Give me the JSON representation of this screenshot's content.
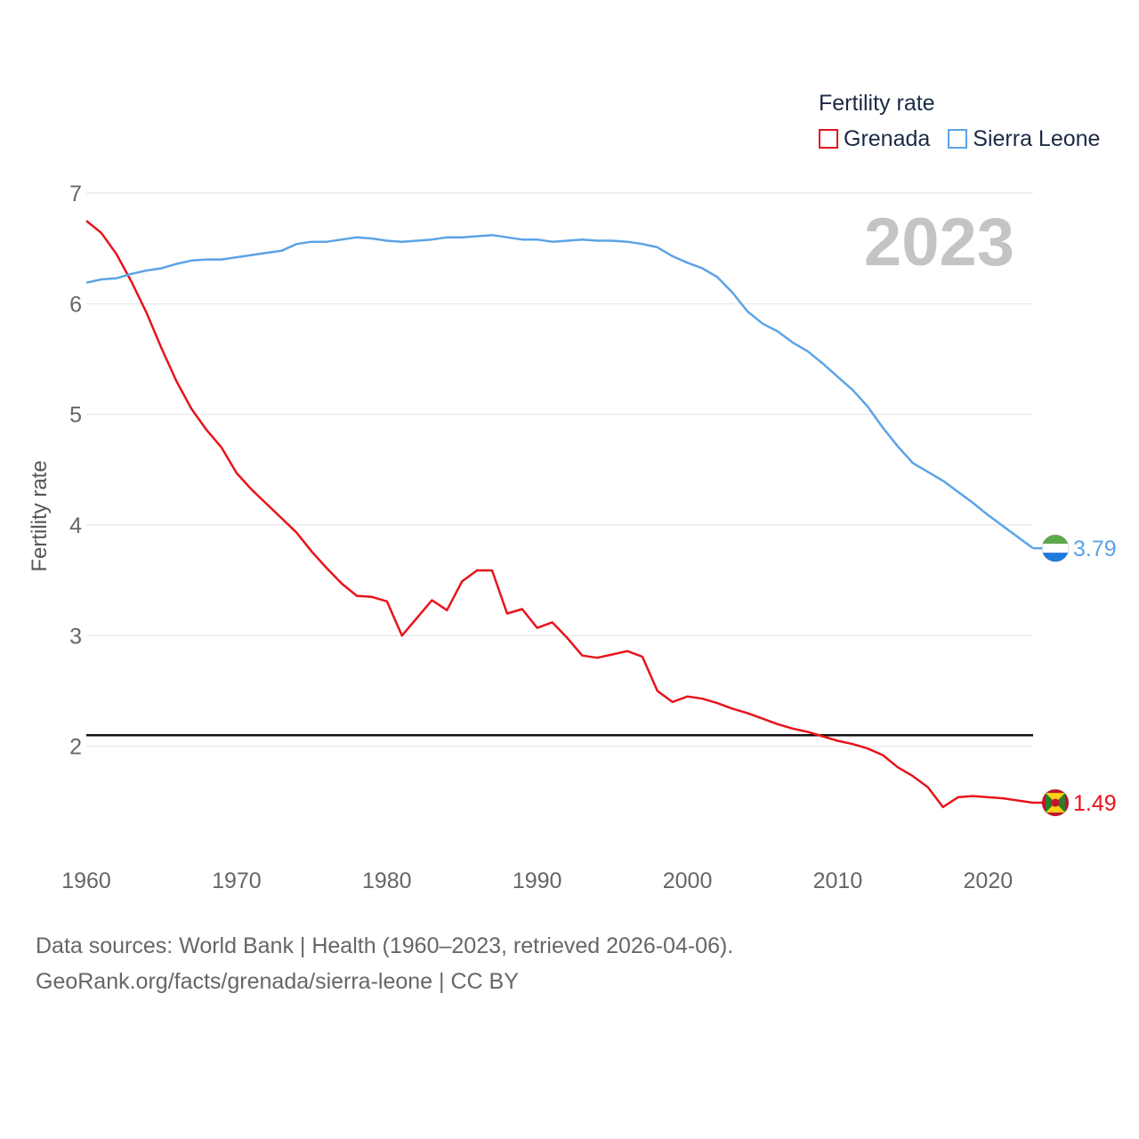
{
  "chart_data": {
    "type": "line",
    "legend_title": "Fertility rate",
    "ylabel": "Fertility rate",
    "xlabel": "",
    "year_label": "2023",
    "xlim": [
      1960,
      2023
    ],
    "ylim": [
      1,
      7
    ],
    "y_ticks": [
      2,
      3,
      4,
      5,
      6,
      7
    ],
    "x_ticks": [
      1960,
      1970,
      1980,
      1990,
      2000,
      2010,
      2020
    ],
    "reference_line": 2.1,
    "grid": true,
    "legend_position": "top-right",
    "series": [
      {
        "name": "Grenada",
        "color": "#e8131a",
        "end_label": "1.49",
        "flag": "grenada-flag",
        "x": [
          1960,
          1961,
          1962,
          1963,
          1964,
          1965,
          1966,
          1967,
          1968,
          1969,
          1970,
          1971,
          1972,
          1973,
          1974,
          1975,
          1976,
          1977,
          1978,
          1979,
          1980,
          1981,
          1982,
          1983,
          1984,
          1985,
          1986,
          1987,
          1988,
          1989,
          1990,
          1991,
          1992,
          1993,
          1994,
          1995,
          1996,
          1997,
          1998,
          1999,
          2000,
          2001,
          2002,
          2003,
          2004,
          2005,
          2006,
          2007,
          2008,
          2009,
          2010,
          2011,
          2012,
          2013,
          2014,
          2015,
          2016,
          2017,
          2018,
          2019,
          2020,
          2021,
          2022,
          2023
        ],
        "values": [
          6.75,
          6.64,
          6.45,
          6.2,
          5.92,
          5.6,
          5.3,
          5.05,
          4.86,
          4.7,
          4.47,
          4.32,
          4.19,
          4.06,
          3.93,
          3.76,
          3.61,
          3.47,
          3.36,
          3.35,
          3.31,
          3.0,
          3.16,
          3.32,
          3.23,
          3.49,
          3.59,
          3.59,
          3.2,
          3.24,
          3.07,
          3.12,
          2.98,
          2.82,
          2.8,
          2.83,
          2.86,
          2.81,
          2.5,
          2.4,
          2.45,
          2.43,
          2.39,
          2.34,
          2.3,
          2.25,
          2.2,
          2.16,
          2.13,
          2.09,
          2.05,
          2.02,
          1.98,
          1.92,
          1.81,
          1.73,
          1.63,
          1.45,
          1.54,
          1.55,
          1.54,
          1.53,
          1.51,
          1.49
        ]
      },
      {
        "name": "Sierra Leone",
        "color": "#5ba3e6",
        "end_label": "3.79",
        "flag": "sierra-leone-flag",
        "x": [
          1960,
          1961,
          1962,
          1963,
          1964,
          1965,
          1966,
          1967,
          1968,
          1969,
          1970,
          1971,
          1972,
          1973,
          1974,
          1975,
          1976,
          1977,
          1978,
          1979,
          1980,
          1981,
          1982,
          1983,
          1984,
          1985,
          1986,
          1987,
          1988,
          1989,
          1990,
          1991,
          1992,
          1993,
          1994,
          1995,
          1996,
          1997,
          1998,
          1999,
          2000,
          2001,
          2002,
          2003,
          2004,
          2005,
          2006,
          2007,
          2008,
          2009,
          2010,
          2011,
          2012,
          2013,
          2014,
          2015,
          2016,
          2017,
          2018,
          2019,
          2020,
          2021,
          2022,
          2023
        ],
        "values": [
          6.19,
          6.22,
          6.23,
          6.27,
          6.3,
          6.32,
          6.36,
          6.39,
          6.4,
          6.4,
          6.42,
          6.44,
          6.46,
          6.48,
          6.54,
          6.56,
          6.56,
          6.58,
          6.6,
          6.59,
          6.57,
          6.56,
          6.57,
          6.58,
          6.6,
          6.6,
          6.61,
          6.62,
          6.6,
          6.58,
          6.58,
          6.56,
          6.57,
          6.58,
          6.57,
          6.57,
          6.56,
          6.54,
          6.51,
          6.43,
          6.37,
          6.32,
          6.24,
          6.1,
          5.93,
          5.82,
          5.75,
          5.65,
          5.57,
          5.46,
          5.34,
          5.22,
          5.07,
          4.88,
          4.71,
          4.56,
          4.48,
          4.4,
          4.3,
          4.2,
          4.09,
          3.99,
          3.89,
          3.79
        ]
      }
    ]
  },
  "source": {
    "line1": "Data sources: World Bank | Health (1960–2023, retrieved 2026-04-06).",
    "line2": "GeoRank.org/facts/grenada/sierra-leone | CC BY"
  }
}
